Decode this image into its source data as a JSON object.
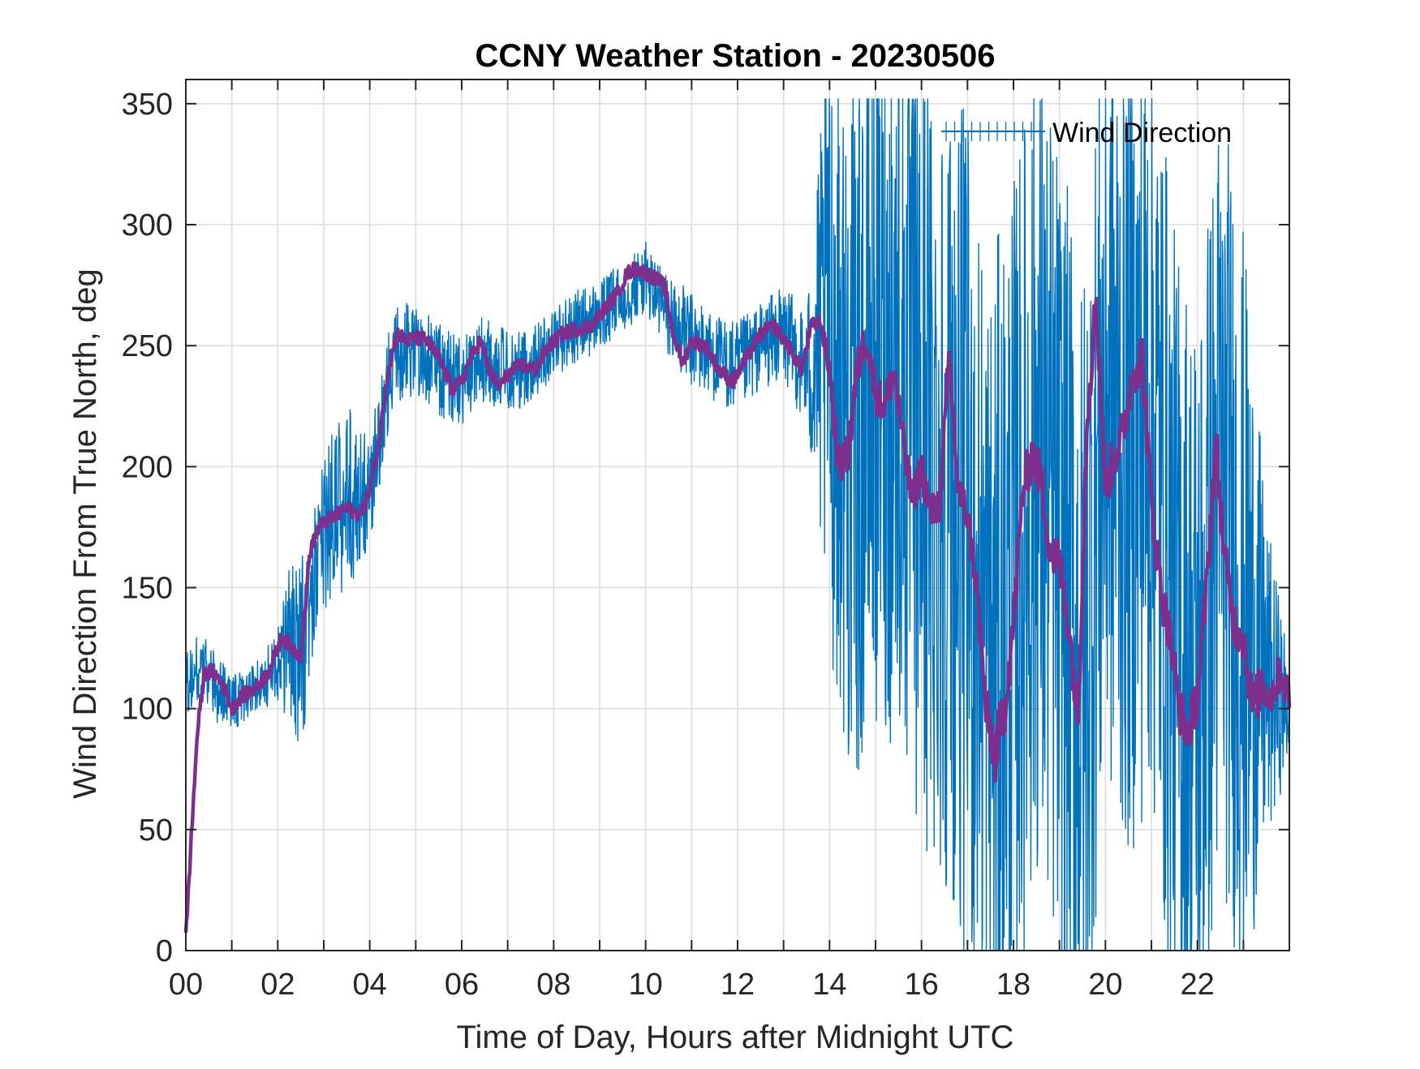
{
  "chart_data": {
    "type": "line",
    "title": "CCNY Weather Station - 20230506",
    "xlabel": "Time of Day, Hours after Midnight UTC",
    "ylabel": "Wind Direction From True North, deg",
    "xlim": [
      0,
      24
    ],
    "ylim": [
      0,
      360
    ],
    "xticks": [
      0,
      2,
      4,
      6,
      8,
      10,
      12,
      14,
      16,
      18,
      20,
      22
    ],
    "xtick_labels": [
      "00",
      "02",
      "04",
      "06",
      "08",
      "10",
      "12",
      "14",
      "16",
      "18",
      "20",
      "22"
    ],
    "yticks": [
      0,
      50,
      100,
      150,
      200,
      250,
      300,
      350
    ],
    "ytick_labels": [
      "0",
      "50",
      "100",
      "150",
      "200",
      "250",
      "300",
      "350"
    ],
    "grid": true,
    "legend": {
      "placement": "top-right",
      "entries": [
        "Wind Direction"
      ]
    },
    "colors": {
      "raw": "#0072BD",
      "smoothed": "#7E2F8E",
      "axis": "#262626",
      "grid": "#DEDEDE"
    },
    "series": [
      {
        "name": "Wind Direction",
        "style": "thin-noisy",
        "x": [
          0.0,
          0.3,
          0.6,
          1.0,
          1.5,
          2.0,
          2.3,
          2.5,
          2.75,
          3.0,
          3.5,
          4.0,
          4.5,
          5.0,
          5.5,
          6.0,
          6.5,
          7.0,
          7.5,
          8.0,
          8.5,
          9.0,
          9.5,
          10.0,
          10.5,
          11.0,
          11.5,
          12.0,
          12.5,
          13.0,
          13.5,
          14.0,
          14.5,
          15.0,
          15.5,
          16.0,
          16.5,
          17.0,
          17.5,
          18.0,
          18.5,
          19.0,
          19.5,
          20.0,
          20.5,
          21.0,
          21.5,
          22.0,
          22.5,
          23.0,
          23.5,
          24.0
        ],
        "y": [
          110,
          118,
          110,
          102,
          108,
          118,
          128,
          120,
          150,
          175,
          185,
          190,
          245,
          250,
          240,
          235,
          245,
          238,
          242,
          252,
          258,
          262,
          270,
          278,
          262,
          252,
          245,
          240,
          250,
          255,
          240,
          255,
          210,
          240,
          240,
          205,
          195,
          170,
          110,
          145,
          205,
          160,
          105,
          235,
          205,
          230,
          130,
          105,
          195,
          140,
          110,
          100
        ],
        "spread": [
          12,
          15,
          15,
          12,
          10,
          15,
          35,
          40,
          30,
          35,
          40,
          25,
          20,
          20,
          20,
          18,
          18,
          18,
          15,
          15,
          15,
          15,
          15,
          15,
          18,
          20,
          18,
          20,
          18,
          20,
          25,
          130,
          150,
          150,
          160,
          170,
          170,
          175,
          175,
          175,
          175,
          175,
          175,
          170,
          170,
          170,
          170,
          165,
          165,
          160,
          70,
          20
        ]
      },
      {
        "style": "thick-smoothed",
        "x": [
          0.0,
          0.1,
          0.25,
          0.4,
          0.6,
          0.8,
          1.0,
          1.2,
          1.5,
          1.8,
          2.0,
          2.1,
          2.3,
          2.5,
          2.7,
          2.9,
          3.1,
          3.3,
          3.5,
          3.8,
          4.0,
          4.2,
          4.4,
          4.6,
          4.8,
          5.0,
          5.2,
          5.5,
          5.8,
          6.0,
          6.2,
          6.4,
          6.6,
          6.8,
          7.0,
          7.3,
          7.6,
          7.9,
          8.2,
          8.5,
          8.8,
          9.1,
          9.4,
          9.6,
          9.8,
          10.0,
          10.2,
          10.4,
          10.6,
          10.8,
          11.0,
          11.3,
          11.6,
          11.9,
          12.2,
          12.5,
          12.8,
          13.1,
          13.4,
          13.6,
          13.8,
          14.0,
          14.2,
          14.4,
          14.6,
          14.8,
          15.0,
          15.2,
          15.4,
          15.6,
          15.8,
          16.0,
          16.2,
          16.4,
          16.6,
          16.8,
          17.0,
          17.2,
          17.4,
          17.6,
          17.8,
          18.0,
          18.2,
          18.4,
          18.6,
          18.8,
          19.0,
          19.2,
          19.4,
          19.6,
          19.8,
          20.0,
          20.2,
          20.4,
          20.6,
          20.8,
          21.0,
          21.2,
          21.4,
          21.6,
          21.8,
          22.0,
          22.2,
          22.4,
          22.6,
          22.8,
          23.0,
          23.2,
          23.4,
          23.6,
          23.8,
          24.0
        ],
        "y": [
          5,
          40,
          90,
          115,
          115,
          110,
          100,
          105,
          108,
          115,
          125,
          130,
          125,
          122,
          165,
          175,
          178,
          180,
          183,
          180,
          190,
          210,
          240,
          255,
          252,
          253,
          253,
          245,
          232,
          235,
          245,
          252,
          240,
          233,
          238,
          242,
          240,
          250,
          255,
          257,
          258,
          265,
          272,
          280,
          282,
          280,
          278,
          275,
          255,
          243,
          252,
          250,
          240,
          235,
          245,
          255,
          258,
          250,
          240,
          258,
          260,
          240,
          200,
          205,
          240,
          255,
          230,
          225,
          240,
          210,
          185,
          200,
          180,
          185,
          245,
          190,
          180,
          150,
          100,
          80,
          100,
          135,
          190,
          205,
          195,
          165,
          160,
          135,
          95,
          220,
          270,
          190,
          205,
          215,
          240,
          245,
          185,
          150,
          130,
          100,
          90,
          105,
          150,
          210,
          160,
          135,
          130,
          100,
          110,
          105,
          115,
          105
        ],
        "spread": [
          3,
          3,
          3,
          3,
          3,
          3,
          3,
          3,
          3,
          3,
          3,
          3,
          3,
          3,
          3,
          3,
          3,
          3,
          3,
          3,
          3,
          3,
          3,
          3,
          3,
          3,
          3,
          3,
          3,
          3,
          3,
          3,
          3,
          3,
          3,
          3,
          3,
          3,
          3,
          3,
          3,
          3,
          3,
          3,
          3,
          3,
          3,
          3,
          3,
          3,
          3,
          3,
          3,
          3,
          3,
          3,
          3,
          3,
          3,
          3,
          3,
          6,
          8,
          8,
          8,
          8,
          8,
          8,
          8,
          8,
          8,
          8,
          8,
          8,
          8,
          8,
          8,
          8,
          10,
          12,
          12,
          10,
          10,
          10,
          10,
          10,
          10,
          10,
          10,
          10,
          12,
          10,
          10,
          10,
          10,
          12,
          10,
          10,
          10,
          10,
          10,
          10,
          10,
          10,
          10,
          10,
          10,
          10,
          10,
          8,
          8,
          8
        ]
      }
    ]
  }
}
